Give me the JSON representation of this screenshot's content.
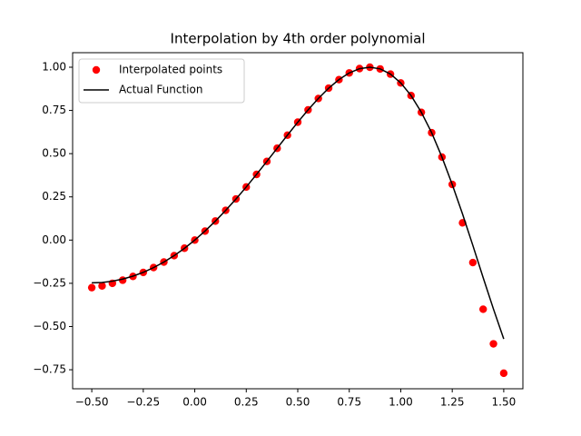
{
  "chart_data": {
    "type": "line",
    "title": "Interpolation by 4th order polynomial",
    "x": [
      -0.5,
      -0.45,
      -0.4,
      -0.35,
      -0.3,
      -0.25,
      -0.2,
      -0.15,
      -0.1,
      -0.05,
      0,
      0.05,
      0.1,
      0.15,
      0.2,
      0.25,
      0.3,
      0.35,
      0.4,
      0.45,
      0.5,
      0.55,
      0.6,
      0.65,
      0.7,
      0.75,
      0.8,
      0.85,
      0.9,
      0.95,
      1.0,
      1.05,
      1.1,
      1.15,
      1.2,
      1.25,
      1.3,
      1.35,
      1.4,
      1.45,
      1.5
    ],
    "series": [
      {
        "name": "Interpolated points",
        "color": "#ff0000",
        "style": "markers",
        "values": [
          -0.275,
          -0.265,
          -0.25,
          -0.232,
          -0.21,
          -0.187,
          -0.159,
          -0.127,
          -0.09,
          -0.047,
          0,
          0.052,
          0.11,
          0.172,
          0.238,
          0.307,
          0.38,
          0.455,
          0.531,
          0.607,
          0.682,
          0.753,
          0.819,
          0.879,
          0.928,
          0.967,
          0.992,
          1.0,
          0.99,
          0.96,
          0.909,
          0.836,
          0.739,
          0.621,
          0.48,
          0.322,
          0.1,
          -0.13,
          -0.4,
          -0.6,
          -0.77
        ]
      },
      {
        "name": "Actual Function",
        "color": "#000000",
        "style": "line",
        "values": [
          -0.2474,
          -0.245,
          -0.2377,
          -0.2255,
          -0.2085,
          -0.1864,
          -0.1593,
          -0.1272,
          -0.0899,
          -0.0475,
          0,
          0.0525,
          0.1098,
          0.1716,
          0.2377,
          0.3074,
          0.3802,
          0.4551,
          0.5312,
          0.6072,
          0.6816,
          0.753,
          0.8192,
          0.8787,
          0.9284,
          0.967,
          0.9915,
          1.0,
          0.9905,
          0.9604,
          0.9093,
          0.836,
          0.739,
          0.6213,
          0.4801,
          0.3217,
          0.1506,
          -0.0309,
          -0.217,
          -0.3986,
          -0.5716
        ]
      }
    ],
    "xlim": [
      -0.593,
      1.593
    ],
    "ylim": [
      -0.86,
      1.084
    ],
    "xticks": [
      {
        "value": -0.5,
        "label": "−0.50"
      },
      {
        "value": -0.25,
        "label": "−0.25"
      },
      {
        "value": 0,
        "label": "0.00"
      },
      {
        "value": 0.25,
        "label": "0.25"
      },
      {
        "value": 0.5,
        "label": "0.50"
      },
      {
        "value": 0.75,
        "label": "0.75"
      },
      {
        "value": 1,
        "label": "1.00"
      },
      {
        "value": 1.25,
        "label": "1.25"
      },
      {
        "value": 1.5,
        "label": "1.50"
      }
    ],
    "yticks": [
      {
        "value": -0.75,
        "label": "−0.75"
      },
      {
        "value": -0.5,
        "label": "−0.50"
      },
      {
        "value": -0.25,
        "label": "−0.25"
      },
      {
        "value": 0,
        "label": "0.00"
      },
      {
        "value": 0.25,
        "label": "0.25"
      },
      {
        "value": 0.5,
        "label": "0.50"
      },
      {
        "value": 0.75,
        "label": "0.75"
      },
      {
        "value": 1,
        "label": "1.00"
      }
    ],
    "grid": false,
    "legend": "upper left"
  }
}
